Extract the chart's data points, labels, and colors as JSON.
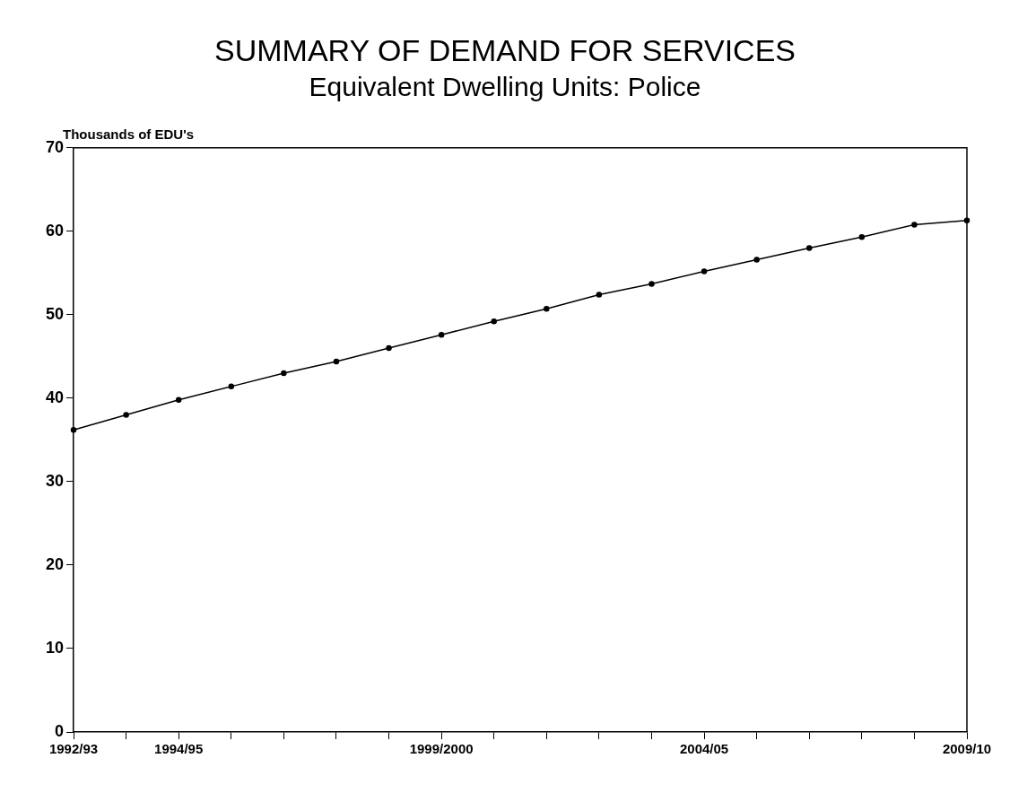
{
  "chart_data": {
    "type": "line",
    "title": "SUMMARY OF DEMAND FOR SERVICES",
    "subtitle": "Equivalent Dwelling Units: Police",
    "ylabel": "Thousands of EDU's",
    "categories": [
      "1992/93",
      null,
      "1994/95",
      null,
      null,
      null,
      null,
      "1999/2000",
      null,
      null,
      null,
      null,
      "2004/05",
      null,
      null,
      null,
      null,
      "2009/10"
    ],
    "series": [
      {
        "color": "#000000",
        "values": [
          36.2,
          38.0,
          39.8,
          41.4,
          43.0,
          44.4,
          46.0,
          47.6,
          49.2,
          50.7,
          52.4,
          53.7,
          55.2,
          56.6,
          58.0,
          59.3,
          60.8,
          61.3
        ]
      }
    ],
    "ylim": [
      0,
      70
    ],
    "yticks": [
      0,
      10,
      20,
      30,
      40,
      50,
      60,
      70
    ],
    "grid": false,
    "legend": false,
    "marker": "circle",
    "line_style": "solid"
  }
}
